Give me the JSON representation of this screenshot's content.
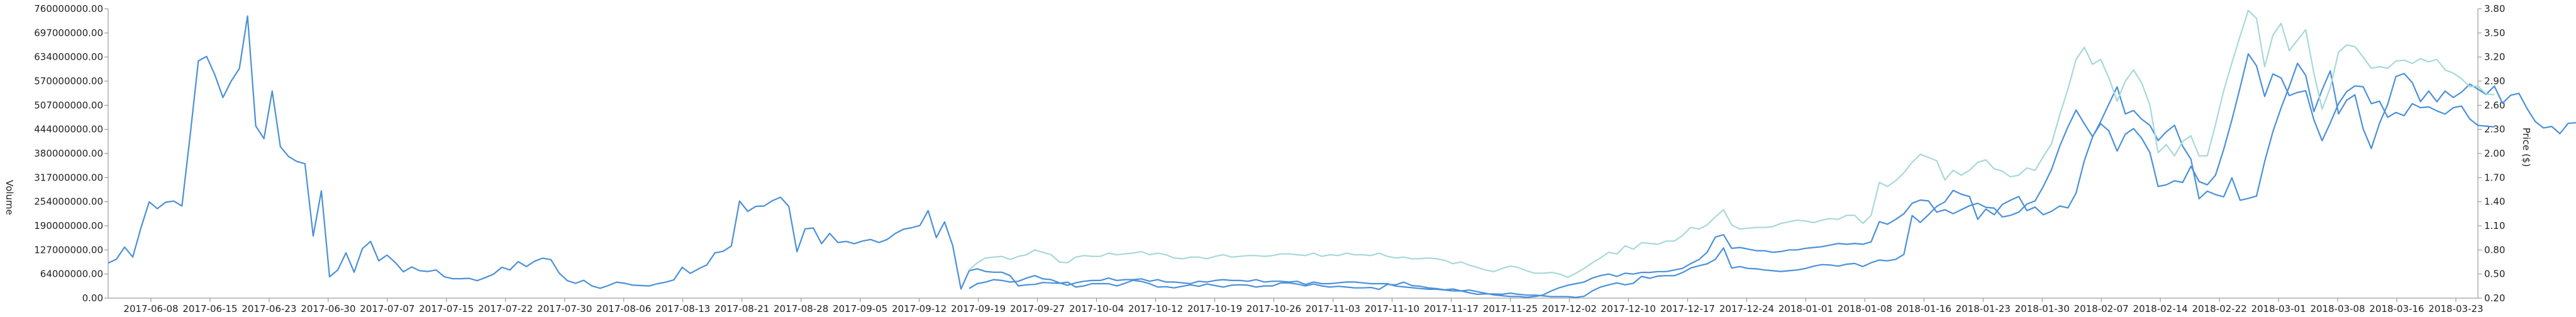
{
  "chart_data": {
    "type": "line",
    "x_labels": [
      "2017-06-08",
      "2017-06-15",
      "2017-06-23",
      "2017-06-30",
      "2017-07-07",
      "2017-07-15",
      "2017-07-22",
      "2017-07-30",
      "2017-08-06",
      "2017-08-13",
      "2017-08-21",
      "2017-08-28",
      "2017-09-05",
      "2017-09-12",
      "2017-09-19",
      "2017-09-27",
      "2017-10-04",
      "2017-10-12",
      "2017-10-19",
      "2017-10-26",
      "2017-11-03",
      "2017-11-10",
      "2017-11-17",
      "2017-11-25",
      "2017-12-02",
      "2017-12-10",
      "2017-12-17",
      "2017-12-24",
      "2018-01-01",
      "2018-01-08",
      "2018-01-16",
      "2018-01-23",
      "2018-01-30",
      "2018-02-07",
      "2018-02-14",
      "2018-02-22",
      "2018-03-01",
      "2018-03-08",
      "2018-03-16",
      "2018-03-23"
    ],
    "y_left": {
      "label": "Volume",
      "ticks": [
        "0.00",
        "64000000.00",
        "127000000.00",
        "190000000.00",
        "254000000.00",
        "317000000.00",
        "380000000.00",
        "444000000.00",
        "507000000.00",
        "570000000.00",
        "634000000.00",
        "697000000.00",
        "760000000.00"
      ],
      "min": 0,
      "max": 760000000
    },
    "y_right": {
      "label": "Price ($)",
      "ticks": [
        "0.20",
        "0.50",
        "0.80",
        "1.10",
        "1.40",
        "1.70",
        "2.00",
        "2.30",
        "2.60",
        "2.90",
        "3.20",
        "3.50",
        "3.80"
      ],
      "min": 0.2,
      "max": 3.8
    },
    "series": [
      {
        "axis": "left",
        "color": "#4a90d9",
        "x_start": 0,
        "x_end": 289,
        "values": [
          92,
          102,
          134,
          108,
          185,
          253,
          235,
          252,
          255,
          242,
          428,
          623,
          635,
          587,
          527,
          570,
          603,
          741,
          452,
          419,
          544,
          398,
          372,
          359,
          353,
          163,
          282,
          56,
          74,
          119,
          68,
          130,
          149,
          98,
          113,
          94,
          69,
          82,
          72,
          70,
          74,
          56,
          51,
          51,
          52,
          46,
          54,
          63,
          81,
          74,
          96,
          83,
          97,
          105,
          101,
          66,
          46,
          39,
          47,
          32,
          26,
          33,
          42,
          39,
          34,
          33,
          32,
          38,
          42,
          48,
          81,
          65,
          77,
          87,
          119,
          123,
          137,
          255,
          228,
          241,
          242,
          256,
          265,
          241,
          122,
          182,
          184,
          143,
          170,
          146,
          149,
          143,
          150,
          154,
          146,
          154,
          170,
          181,
          185,
          191,
          230,
          159,
          200,
          138,
          24,
          72,
          77,
          70,
          68,
          68,
          59,
          32,
          35,
          36,
          41,
          40,
          39,
          42,
          29,
          32,
          38,
          38,
          38,
          32,
          39,
          47,
          44,
          38,
          29,
          30,
          27,
          31,
          35,
          31,
          37,
          33,
          29,
          34,
          35,
          34,
          29,
          32,
          32,
          40,
          40,
          37,
          32,
          37,
          32,
          29,
          31,
          29,
          27,
          27,
          28,
          23,
          36,
          35,
          42,
          33,
          31,
          27,
          25,
          22,
          24,
          19,
          14,
          10,
          11,
          11,
          10,
          13,
          10,
          8,
          8,
          6,
          4,
          4,
          4,
          2,
          5,
          19,
          29,
          35,
          40,
          35,
          39,
          57,
          52,
          58,
          59,
          59,
          67,
          79,
          85,
          90,
          102,
          132,
          79,
          83,
          78,
          77,
          74,
          72,
          70,
          72,
          74,
          78,
          84,
          88,
          87,
          84,
          89,
          91,
          83,
          93,
          100,
          98,
          102,
          115,
          217,
          199,
          219,
          241,
          253,
          283,
          273,
          267,
          207,
          234,
          219,
          246,
          257,
          267,
          230,
          239,
          219,
          228,
          242,
          237,
          276,
          361,
          423,
          464,
          510,
          555,
          484,
          493,
          470,
          454,
          414,
          437,
          454,
          399,
          365,
          261,
          281,
          272,
          266,
          316,
          257,
          262,
          268,
          359,
          437,
          500,
          556,
          617,
          585,
          490,
          547,
          597,
          484,
          520,
          534,
          445,
          393,
          459,
          509,
          582,
          590,
          566,
          516,
          544,
          516,
          544,
          527,
          541,
          562,
          549,
          535,
          557,
          512,
          533,
          538,
          498,
          464,
          447,
          451,
          432,
          459,
          461,
          434,
          425,
          394,
          416,
          450,
          426,
          436,
          424,
          429,
          431,
          412,
          390,
          359,
          341,
          343,
          348,
          322,
          325,
          300,
          292,
          267,
          276,
          265,
          238,
          272,
          294,
          307,
          300,
          291,
          296,
          303
        ]
      },
      {
        "axis": "right",
        "color": "#a8d8d8",
        "x_start": 105,
        "x_end": 289,
        "values": [
          0.55,
          0.64,
          0.7,
          0.71,
          0.72,
          0.68,
          0.72,
          0.74,
          0.8,
          0.77,
          0.74,
          0.65,
          0.64,
          0.71,
          0.73,
          0.72,
          0.72,
          0.76,
          0.74,
          0.75,
          0.76,
          0.78,
          0.74,
          0.76,
          0.74,
          0.7,
          0.69,
          0.71,
          0.71,
          0.69,
          0.72,
          0.74,
          0.71,
          0.72,
          0.73,
          0.73,
          0.72,
          0.73,
          0.75,
          0.75,
          0.74,
          0.73,
          0.76,
          0.72,
          0.74,
          0.73,
          0.76,
          0.74,
          0.74,
          0.73,
          0.76,
          0.72,
          0.7,
          0.71,
          0.69,
          0.69,
          0.7,
          0.69,
          0.67,
          0.63,
          0.65,
          0.61,
          0.58,
          0.55,
          0.53,
          0.57,
          0.6,
          0.58,
          0.54,
          0.51,
          0.51,
          0.52,
          0.5,
          0.46,
          0.51,
          0.57,
          0.64,
          0.7,
          0.77,
          0.75,
          0.85,
          0.81,
          0.89,
          0.88,
          0.87,
          0.91,
          0.91,
          0.98,
          1.08,
          1.06,
          1.11,
          1.21,
          1.3,
          1.11,
          1.06,
          1.07,
          1.08,
          1.08,
          1.09,
          1.13,
          1.15,
          1.17,
          1.16,
          1.14,
          1.17,
          1.19,
          1.18,
          1.23,
          1.23,
          1.13,
          1.23,
          1.64,
          1.59,
          1.66,
          1.76,
          1.89,
          1.99,
          1.95,
          1.91,
          1.67,
          1.79,
          1.73,
          1.79,
          1.89,
          1.92,
          1.81,
          1.78,
          1.71,
          1.73,
          1.82,
          1.79,
          1.96,
          2.12,
          2.48,
          2.8,
          3.17,
          3.32,
          3.11,
          3.17,
          2.94,
          2.65,
          2.9,
          3.04,
          2.88,
          2.6,
          2.01,
          2.11,
          1.97,
          2.15,
          2.22,
          1.97,
          1.97,
          2.36,
          2.78,
          3.13,
          3.46,
          3.78,
          3.68,
          3.08,
          3.47,
          3.62,
          3.28,
          3.41,
          3.54,
          3.0,
          2.55,
          2.82,
          3.26,
          3.35,
          3.33,
          3.2,
          3.06,
          3.08,
          3.06,
          3.15,
          3.16,
          3.12,
          3.18,
          3.14,
          3.17,
          3.04,
          3.0,
          2.93,
          2.83,
          2.84,
          2.74,
          2.73
        ]
      },
      {
        "axis": "right",
        "color": "#4a90d9",
        "x_start": 105,
        "x_end": 289,
        "values": [
          0.32,
          0.38,
          0.4,
          0.43,
          0.42,
          0.4,
          0.41,
          0.45,
          0.48,
          0.44,
          0.43,
          0.39,
          0.36,
          0.39,
          0.41,
          0.42,
          0.42,
          0.45,
          0.42,
          0.43,
          0.43,
          0.44,
          0.41,
          0.43,
          0.4,
          0.4,
          0.39,
          0.38,
          0.41,
          0.4,
          0.42,
          0.43,
          0.42,
          0.42,
          0.41,
          0.43,
          0.4,
          0.41,
          0.41,
          0.4,
          0.41,
          0.37,
          0.4,
          0.38,
          0.38,
          0.39,
          0.4,
          0.4,
          0.39,
          0.38,
          0.38,
          0.38,
          0.35,
          0.34,
          0.33,
          0.32,
          0.31,
          0.31,
          0.3,
          0.29,
          0.29,
          0.3,
          0.28,
          0.26,
          0.24,
          0.23,
          0.22,
          0.22,
          0.21,
          0.22,
          0.24,
          0.29,
          0.33,
          0.36,
          0.38,
          0.4,
          0.45,
          0.48,
          0.5,
          0.47,
          0.51,
          0.5,
          0.52,
          0.52,
          0.53,
          0.53,
          0.55,
          0.57,
          0.63,
          0.68,
          0.77,
          0.96,
          0.99,
          0.82,
          0.83,
          0.81,
          0.79,
          0.79,
          0.77,
          0.78,
          0.8,
          0.8,
          0.82,
          0.83,
          0.84,
          0.86,
          0.88,
          0.87,
          0.88,
          0.87,
          0.9,
          1.15,
          1.12,
          1.18,
          1.25,
          1.38,
          1.42,
          1.41,
          1.27,
          1.3,
          1.25,
          1.3,
          1.35,
          1.38,
          1.33,
          1.32,
          1.21,
          1.23,
          1.27,
          1.37,
          1.41,
          1.59,
          1.8,
          2.09,
          2.33,
          2.54,
          2.37,
          2.21,
          2.37,
          2.28,
          2.03,
          2.24,
          2.31,
          2.19,
          2.01,
          1.59,
          1.61,
          1.66,
          1.64,
          1.84,
          1.65,
          1.61,
          1.73,
          2.05,
          2.42,
          2.82,
          3.24,
          3.09,
          2.71,
          2.99,
          2.94,
          2.72,
          2.76,
          2.78,
          2.42,
          2.16,
          2.38,
          2.62,
          2.77,
          2.84,
          2.83,
          2.62,
          2.65,
          2.45,
          2.51,
          2.47,
          2.62,
          2.57,
          2.58,
          2.53,
          2.49,
          2.57,
          2.59,
          2.43,
          2.35,
          2.34,
          2.33
        ]
      }
    ]
  }
}
